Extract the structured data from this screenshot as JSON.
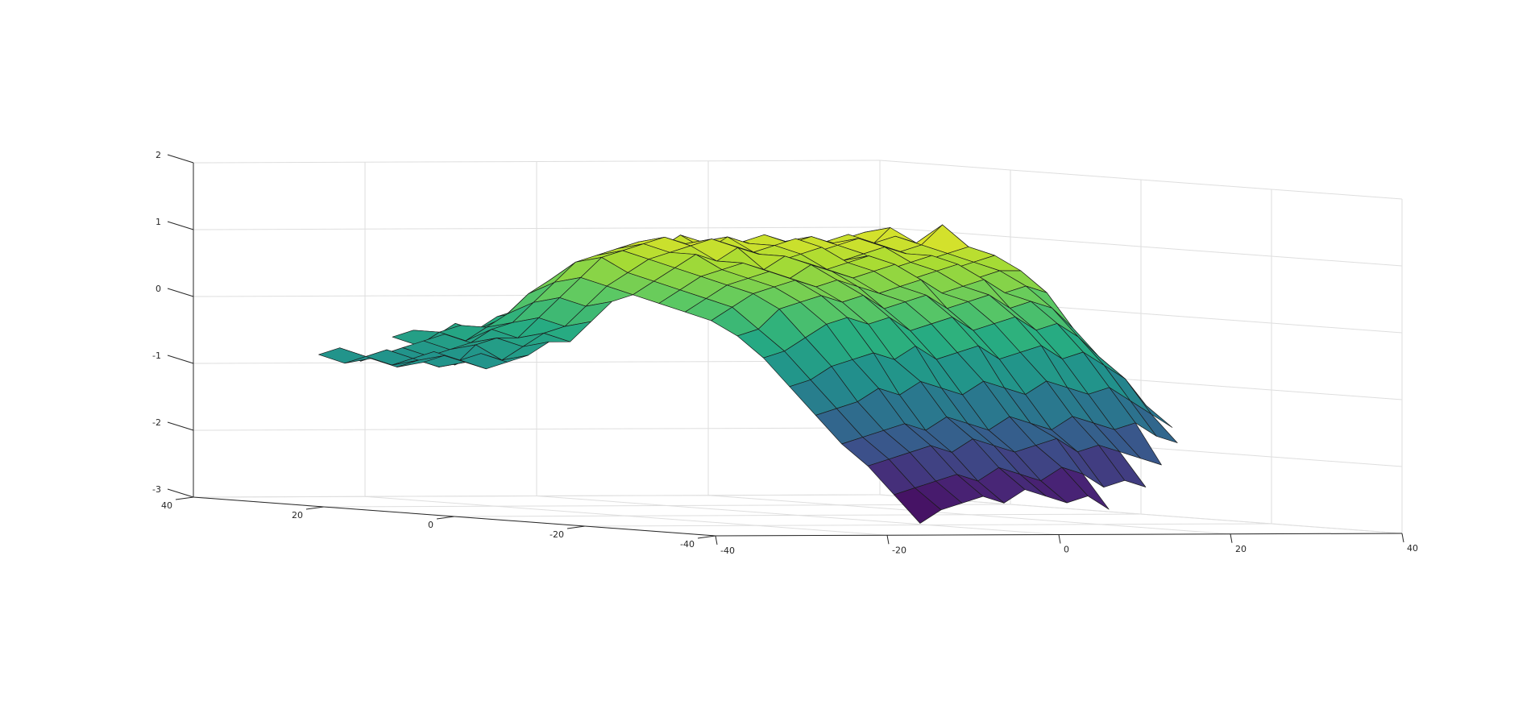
{
  "chart_data": {
    "type": "surface",
    "title": "",
    "xlabel": "",
    "ylabel": "",
    "zlabel": "",
    "xlim": [
      -40,
      40
    ],
    "ylim": [
      -40,
      40
    ],
    "zlim": [
      -3,
      2
    ],
    "x_ticks": [
      -40,
      -20,
      0,
      20,
      40
    ],
    "y_ticks": [
      -40,
      -20,
      0,
      20,
      40
    ],
    "z_ticks": [
      -3,
      -2,
      -1,
      0,
      1,
      2
    ],
    "x_tick_labels": [
      "-40",
      "-20",
      "0",
      "20",
      "40"
    ],
    "y_tick_labels": [
      "-40",
      "-20",
      "0",
      "20",
      "40"
    ],
    "z_tick_labels": [
      "-3",
      "-2",
      "-1",
      "0",
      "1",
      "2"
    ],
    "grid": true,
    "colormap": "viridis",
    "edge_color": "#1b1b1b",
    "surface": {
      "x_range": [
        -33,
        33
      ],
      "y_range": [
        -30,
        38
      ],
      "rows": [
        {
          "y": 38,
          "z": [
            null,
            null,
            null,
            null,
            null,
            null,
            -0.6,
            -0.5,
            -0.6,
            -0.4,
            -0.5,
            -0.3,
            -0.2,
            -0.1,
            0.0,
            0.1,
            0.0,
            0.2,
            0.1,
            0.2,
            0.3,
            0.2,
            0.1,
            0.2,
            0.3,
            0.2,
            0.1,
            0.2
          ]
        },
        {
          "y": 34,
          "z": [
            null,
            null,
            null,
            null,
            null,
            null,
            -0.7,
            -0.5,
            -0.4,
            -0.5,
            -0.3,
            -0.2,
            0.0,
            0.1,
            0.2,
            0.3,
            0.4,
            0.3,
            0.5,
            0.4,
            0.5,
            0.6,
            0.5,
            0.4,
            0.5,
            0.6,
            0.4,
            0.3
          ]
        },
        {
          "y": 30,
          "z": [
            -0.8,
            -0.7,
            -0.9,
            -0.8,
            -0.7,
            -0.6,
            -0.5,
            -0.6,
            -0.4,
            -0.2,
            0.1,
            0.3,
            0.5,
            0.6,
            0.7,
            0.8,
            0.7,
            0.9,
            0.8,
            0.7,
            0.8,
            0.9,
            0.8,
            0.7,
            0.8,
            0.9,
            1.0,
            0.7
          ]
        },
        {
          "y": 26,
          "z": [
            -0.9,
            -0.8,
            -0.7,
            -0.9,
            -0.8,
            -0.7,
            -0.6,
            -0.4,
            -0.3,
            0.0,
            0.3,
            0.6,
            0.7,
            0.8,
            0.9,
            0.8,
            1.0,
            0.9,
            0.8,
            0.9,
            1.0,
            0.9,
            0.8,
            0.9,
            1.0,
            0.8,
            1.1,
            0.8
          ]
        },
        {
          "y": 22,
          "z": [
            -0.8,
            -0.9,
            -0.8,
            -0.7,
            -0.9,
            -0.6,
            -0.5,
            -0.5,
            -0.2,
            0.1,
            0.4,
            0.7,
            0.8,
            0.9,
            1.0,
            0.9,
            0.8,
            1.0,
            0.9,
            0.8,
            0.9,
            1.0,
            0.9,
            0.8,
            0.9,
            1.0,
            0.9,
            0.7
          ]
        },
        {
          "y": 18,
          "z": [
            -0.9,
            -0.8,
            -0.9,
            -0.8,
            -0.7,
            -0.8,
            -0.6,
            -0.4,
            -0.3,
            0.0,
            0.3,
            0.5,
            0.7,
            0.8,
            0.9,
            1.0,
            0.9,
            0.8,
            0.9,
            1.0,
            0.8,
            0.9,
            1.0,
            0.9,
            0.8,
            0.9,
            1.2,
            0.6
          ]
        },
        {
          "y": 14,
          "z": [
            -0.8,
            -0.7,
            -0.8,
            -0.9,
            -0.8,
            -0.7,
            -0.5,
            -0.5,
            -0.2,
            0.1,
            0.2,
            0.4,
            0.6,
            0.8,
            0.7,
            0.9,
            0.8,
            0.7,
            0.8,
            0.9,
            0.7,
            0.8,
            0.9,
            0.8,
            0.7,
            0.8,
            0.9,
            0.5
          ]
        },
        {
          "y": 10,
          "z": [
            null,
            null,
            null,
            null,
            null,
            null,
            null,
            null,
            null,
            null,
            0.1,
            0.3,
            0.5,
            0.6,
            0.7,
            0.6,
            0.8,
            0.7,
            0.6,
            0.7,
            0.8,
            0.6,
            0.7,
            0.8,
            0.6,
            0.7,
            0.8,
            0.3
          ]
        },
        {
          "y": 6,
          "z": [
            null,
            null,
            null,
            null,
            null,
            null,
            null,
            null,
            null,
            null,
            0.0,
            0.2,
            0.4,
            0.5,
            0.6,
            0.5,
            0.7,
            0.6,
            0.5,
            0.6,
            0.7,
            0.5,
            0.6,
            0.7,
            0.5,
            0.6,
            0.6,
            0.1
          ]
        },
        {
          "y": 2,
          "z": [
            null,
            null,
            null,
            null,
            null,
            null,
            null,
            null,
            null,
            null,
            -0.1,
            0.1,
            0.3,
            0.4,
            0.5,
            0.4,
            0.5,
            0.4,
            0.3,
            0.4,
            0.5,
            0.3,
            0.4,
            0.5,
            0.3,
            0.4,
            0.3,
            -0.3
          ]
        },
        {
          "y": -2,
          "z": [
            null,
            null,
            null,
            null,
            null,
            null,
            null,
            null,
            null,
            null,
            -0.3,
            -0.2,
            0.1,
            0.2,
            0.3,
            0.2,
            0.3,
            0.1,
            0.2,
            0.3,
            0.1,
            0.2,
            0.3,
            0.1,
            0.2,
            0.1,
            -0.2,
            -0.7
          ]
        },
        {
          "y": -6,
          "z": [
            null,
            null,
            null,
            null,
            null,
            null,
            null,
            null,
            null,
            null,
            -0.6,
            -0.5,
            -0.3,
            -0.1,
            0.0,
            -0.1,
            0.0,
            -0.2,
            -0.1,
            0.0,
            -0.2,
            -0.1,
            0.0,
            -0.2,
            -0.1,
            -0.3,
            -0.6,
            -1.0
          ]
        },
        {
          "y": -10,
          "z": [
            null,
            null,
            null,
            null,
            null,
            null,
            null,
            null,
            null,
            null,
            -1.0,
            -0.9,
            -0.7,
            -0.6,
            -0.5,
            -0.6,
            -0.4,
            -0.6,
            -0.5,
            -0.4,
            -0.6,
            -0.5,
            -0.4,
            -0.6,
            -0.5,
            -0.7,
            -0.9,
            -1.3
          ]
        },
        {
          "y": -14,
          "z": [
            null,
            null,
            null,
            null,
            null,
            null,
            null,
            null,
            null,
            null,
            -1.4,
            -1.3,
            -1.2,
            -1.0,
            -1.1,
            -0.9,
            -1.0,
            -1.1,
            -0.9,
            -1.0,
            -1.1,
            -0.9,
            -1.0,
            -1.1,
            -1.0,
            -1.2,
            -1.4,
            -1.6
          ]
        },
        {
          "y": -18,
          "z": [
            null,
            null,
            null,
            null,
            null,
            null,
            null,
            null,
            null,
            null,
            -1.8,
            -1.7,
            -1.6,
            -1.5,
            -1.6,
            -1.4,
            -1.5,
            -1.6,
            -1.4,
            -1.5,
            -1.6,
            -1.4,
            -1.5,
            -1.6,
            -1.5,
            -1.7,
            -1.8,
            null
          ]
        },
        {
          "y": -22,
          "z": [
            null,
            null,
            null,
            null,
            null,
            null,
            null,
            null,
            null,
            null,
            -2.1,
            -2.0,
            -1.9,
            -1.8,
            -1.9,
            -1.7,
            -1.8,
            -1.9,
            -1.8,
            -1.7,
            -1.9,
            -1.8,
            -1.9,
            -2.0,
            -2.1,
            null,
            null,
            null
          ]
        },
        {
          "y": -26,
          "z": [
            null,
            null,
            null,
            null,
            null,
            null,
            null,
            null,
            null,
            null,
            -2.5,
            -2.4,
            -2.3,
            -2.2,
            -2.3,
            -2.1,
            -2.2,
            -2.3,
            -2.1,
            -2.2,
            -2.4,
            -2.3,
            -2.4,
            null,
            null,
            null,
            null,
            null
          ]
        },
        {
          "y": -30,
          "z": [
            null,
            null,
            null,
            null,
            null,
            null,
            null,
            null,
            null,
            null,
            -2.9,
            -2.7,
            -2.6,
            -2.5,
            -2.6,
            -2.4,
            -2.5,
            -2.6,
            -2.5,
            -2.7,
            null,
            null,
            null,
            null,
            null,
            null,
            null,
            null
          ]
        }
      ]
    }
  }
}
